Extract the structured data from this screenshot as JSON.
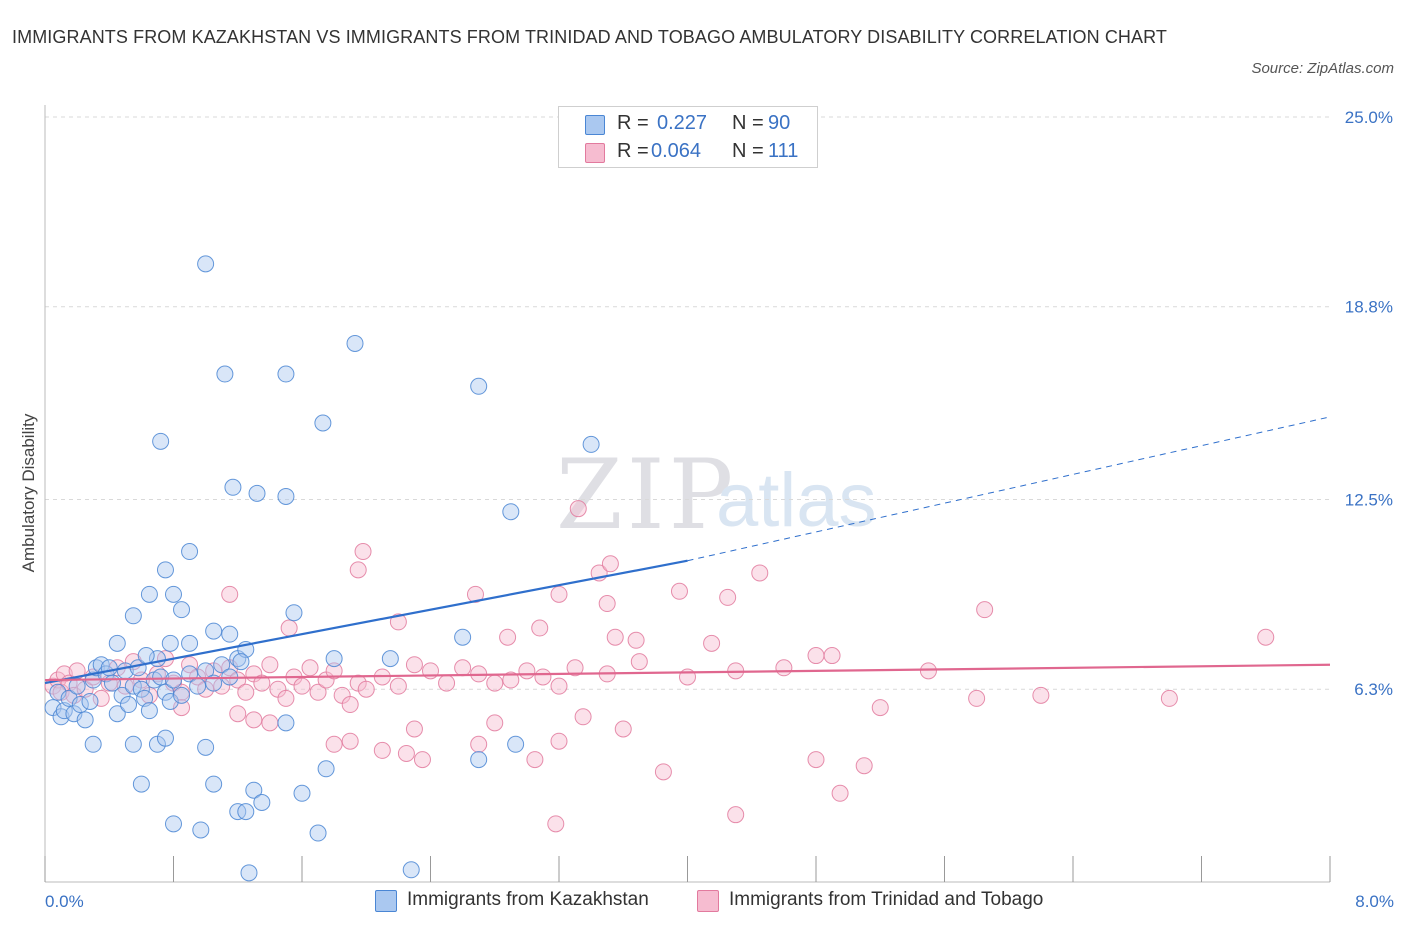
{
  "title": "IMMIGRANTS FROM KAZAKHSTAN VS IMMIGRANTS FROM TRINIDAD AND TOBAGO AMBULATORY DISABILITY CORRELATION CHART",
  "source": "Source: ZipAtlas.com",
  "watermark": {
    "zip": "ZIP",
    "atlas": "atlas"
  },
  "legend_stats": [
    {
      "r_label": "R =",
      "r_value": "0.227",
      "n_label": "N =",
      "n_value": "90"
    },
    {
      "r_label": "R =",
      "r_value": "0.064",
      "n_label": "N =",
      "n_value": "111"
    }
  ],
  "colors": {
    "blue_fill": "#aac8f0",
    "blue_stroke": "#4a86d4",
    "blue_line": "#2f6fcc",
    "pink_fill": "#f6bcd0",
    "pink_stroke": "#e27a9e",
    "pink_line": "#e0678f",
    "grid": "#d9d9d9",
    "tick_text": "#3a72c4"
  },
  "chart_data": {
    "type": "scatter",
    "title": "IMMIGRANTS FROM KAZAKHSTAN VS IMMIGRANTS FROM TRINIDAD AND TOBAGO AMBULATORY DISABILITY CORRELATION CHART",
    "xlabel": "",
    "ylabel": "Ambulatory Disability",
    "xlim": [
      0,
      8.0
    ],
    "ylim": [
      0,
      25.0
    ],
    "x_tick_labels": [
      "0.0%",
      "8.0%"
    ],
    "y_ticks": [
      6.3,
      12.5,
      18.8,
      25.0
    ],
    "y_tick_labels": [
      "6.3%",
      "12.5%",
      "18.8%",
      "25.0%"
    ],
    "grid": "horizontal dashed",
    "legend_position": "bottom",
    "series": [
      {
        "name": "Immigrants from Kazakhstan",
        "color": "blue",
        "trend": {
          "x": [
            0.0,
            4.0
          ],
          "y": [
            6.5,
            10.5
          ],
          "dashed_extension": {
            "x": [
              4.0,
              8.0
            ],
            "y": [
              10.5,
              15.2
            ]
          }
        },
        "points": [
          [
            0.05,
            5.7
          ],
          [
            0.08,
            6.2
          ],
          [
            0.1,
            5.4
          ],
          [
            0.12,
            5.6
          ],
          [
            0.15,
            6.0
          ],
          [
            0.18,
            5.5
          ],
          [
            0.2,
            6.4
          ],
          [
            0.22,
            5.8
          ],
          [
            0.25,
            5.3
          ],
          [
            0.28,
            5.9
          ],
          [
            0.3,
            6.6
          ],
          [
            0.32,
            7.0
          ],
          [
            0.35,
            7.1
          ],
          [
            0.38,
            6.8
          ],
          [
            0.4,
            7.0
          ],
          [
            0.42,
            6.5
          ],
          [
            0.45,
            5.5
          ],
          [
            0.48,
            6.1
          ],
          [
            0.5,
            6.9
          ],
          [
            0.52,
            5.8
          ],
          [
            0.55,
            6.4
          ],
          [
            0.58,
            7.0
          ],
          [
            0.6,
            6.3
          ],
          [
            0.62,
            6.0
          ],
          [
            0.65,
            5.6
          ],
          [
            0.68,
            6.6
          ],
          [
            0.7,
            7.3
          ],
          [
            0.72,
            6.7
          ],
          [
            0.75,
            6.2
          ],
          [
            0.78,
            5.9
          ],
          [
            0.8,
            6.6
          ],
          [
            0.85,
            6.1
          ],
          [
            0.9,
            6.8
          ],
          [
            0.95,
            6.4
          ],
          [
            1.0,
            6.9
          ],
          [
            1.05,
            6.5
          ],
          [
            1.1,
            7.1
          ],
          [
            1.15,
            6.7
          ],
          [
            1.2,
            7.3
          ],
          [
            0.3,
            4.5
          ],
          [
            0.55,
            4.5
          ],
          [
            0.7,
            4.5
          ],
          [
            0.75,
            4.7
          ],
          [
            0.6,
            3.2
          ],
          [
            1.0,
            20.2
          ],
          [
            1.93,
            17.6
          ],
          [
            1.12,
            16.6
          ],
          [
            1.5,
            16.6
          ],
          [
            2.7,
            16.2
          ],
          [
            1.73,
            15.0
          ],
          [
            0.72,
            14.4
          ],
          [
            3.4,
            14.3
          ],
          [
            1.17,
            12.9
          ],
          [
            1.32,
            12.7
          ],
          [
            1.5,
            12.6
          ],
          [
            2.9,
            12.1
          ],
          [
            0.9,
            10.8
          ],
          [
            0.75,
            10.2
          ],
          [
            0.65,
            9.4
          ],
          [
            0.8,
            9.4
          ],
          [
            0.85,
            8.9
          ],
          [
            1.55,
            8.8
          ],
          [
            0.55,
            8.7
          ],
          [
            1.05,
            8.2
          ],
          [
            1.15,
            8.1
          ],
          [
            0.45,
            7.8
          ],
          [
            0.78,
            7.8
          ],
          [
            0.9,
            7.8
          ],
          [
            1.25,
            7.6
          ],
          [
            0.63,
            7.4
          ],
          [
            1.22,
            7.2
          ],
          [
            1.8,
            7.3
          ],
          [
            2.15,
            7.3
          ],
          [
            2.6,
            8.0
          ],
          [
            1.0,
            4.4
          ],
          [
            1.05,
            3.2
          ],
          [
            1.3,
            3.0
          ],
          [
            1.6,
            2.9
          ],
          [
            1.35,
            2.6
          ],
          [
            1.2,
            2.3
          ],
          [
            1.25,
            2.3
          ],
          [
            0.8,
            1.9
          ],
          [
            0.97,
            1.7
          ],
          [
            1.7,
            1.6
          ],
          [
            1.27,
            0.3
          ],
          [
            2.28,
            0.4
          ],
          [
            1.5,
            5.2
          ],
          [
            2.7,
            4.0
          ],
          [
            2.93,
            4.5
          ],
          [
            1.75,
            3.7
          ]
        ]
      },
      {
        "name": "Immigrants from Trinidad and Tobago",
        "color": "pink",
        "trend": {
          "x": [
            0.0,
            8.0
          ],
          "y": [
            6.6,
            7.1
          ]
        },
        "points": [
          [
            0.05,
            6.4
          ],
          [
            0.08,
            6.6
          ],
          [
            0.1,
            6.2
          ],
          [
            0.12,
            6.8
          ],
          [
            0.15,
            6.5
          ],
          [
            0.18,
            6.1
          ],
          [
            0.2,
            6.9
          ],
          [
            0.25,
            6.3
          ],
          [
            0.3,
            6.7
          ],
          [
            0.35,
            6.0
          ],
          [
            0.4,
            6.5
          ],
          [
            0.45,
            7.0
          ],
          [
            0.5,
            6.4
          ],
          [
            0.55,
            7.2
          ],
          [
            0.6,
            6.6
          ],
          [
            0.65,
            6.1
          ],
          [
            0.7,
            6.8
          ],
          [
            0.75,
            7.3
          ],
          [
            0.8,
            6.5
          ],
          [
            0.85,
            6.2
          ],
          [
            0.9,
            7.1
          ],
          [
            0.95,
            6.7
          ],
          [
            1.0,
            6.3
          ],
          [
            1.05,
            6.9
          ],
          [
            1.1,
            6.4
          ],
          [
            1.15,
            7.0
          ],
          [
            1.2,
            6.6
          ],
          [
            1.25,
            6.2
          ],
          [
            1.3,
            6.8
          ],
          [
            1.35,
            6.5
          ],
          [
            1.4,
            7.1
          ],
          [
            1.45,
            6.3
          ],
          [
            1.5,
            6.0
          ],
          [
            1.55,
            6.7
          ],
          [
            1.6,
            6.4
          ],
          [
            1.65,
            7.0
          ],
          [
            1.7,
            6.2
          ],
          [
            1.75,
            6.6
          ],
          [
            1.8,
            6.9
          ],
          [
            1.85,
            6.1
          ],
          [
            1.9,
            5.8
          ],
          [
            1.95,
            6.5
          ],
          [
            2.0,
            6.3
          ],
          [
            2.1,
            6.7
          ],
          [
            2.2,
            6.4
          ],
          [
            2.3,
            7.1
          ],
          [
            2.4,
            6.9
          ],
          [
            2.5,
            6.5
          ],
          [
            2.6,
            7.0
          ],
          [
            2.7,
            6.8
          ],
          [
            2.8,
            6.5
          ],
          [
            2.9,
            6.6
          ],
          [
            3.0,
            6.9
          ],
          [
            3.1,
            6.7
          ],
          [
            3.2,
            6.4
          ],
          [
            3.3,
            7.0
          ],
          [
            3.5,
            6.8
          ],
          [
            3.7,
            7.2
          ],
          [
            4.0,
            6.7
          ],
          [
            4.3,
            6.9
          ],
          [
            4.6,
            7.0
          ],
          [
            4.9,
            7.4
          ],
          [
            5.2,
            5.7
          ],
          [
            5.5,
            6.9
          ],
          [
            5.8,
            6.0
          ],
          [
            6.2,
            6.1
          ],
          [
            7.0,
            6.0
          ],
          [
            7.6,
            8.0
          ],
          [
            1.98,
            10.8
          ],
          [
            1.95,
            10.2
          ],
          [
            3.32,
            12.2
          ],
          [
            3.45,
            10.1
          ],
          [
            3.52,
            10.4
          ],
          [
            4.45,
            10.1
          ],
          [
            3.5,
            9.1
          ],
          [
            3.95,
            9.5
          ],
          [
            2.68,
            9.4
          ],
          [
            3.2,
            9.4
          ],
          [
            4.25,
            9.3
          ],
          [
            5.85,
            8.9
          ],
          [
            2.2,
            8.5
          ],
          [
            1.52,
            8.3
          ],
          [
            3.08,
            8.3
          ],
          [
            2.88,
            8.0
          ],
          [
            3.55,
            8.0
          ],
          [
            3.68,
            7.9
          ],
          [
            4.15,
            7.8
          ],
          [
            4.8,
            7.4
          ],
          [
            1.15,
            9.4
          ],
          [
            1.2,
            5.5
          ],
          [
            0.85,
            5.7
          ],
          [
            1.3,
            5.3
          ],
          [
            1.4,
            5.2
          ],
          [
            2.3,
            5.0
          ],
          [
            2.8,
            5.2
          ],
          [
            3.35,
            5.4
          ],
          [
            3.6,
            5.0
          ],
          [
            2.25,
            4.2
          ],
          [
            2.7,
            4.5
          ],
          [
            3.2,
            4.6
          ],
          [
            1.9,
            4.6
          ],
          [
            2.1,
            4.3
          ],
          [
            2.35,
            4.0
          ],
          [
            3.05,
            4.0
          ],
          [
            4.8,
            4.0
          ],
          [
            5.1,
            3.8
          ],
          [
            3.85,
            3.6
          ],
          [
            4.95,
            2.9
          ],
          [
            4.3,
            2.2
          ],
          [
            3.18,
            1.9
          ],
          [
            1.8,
            4.5
          ]
        ]
      }
    ]
  }
}
